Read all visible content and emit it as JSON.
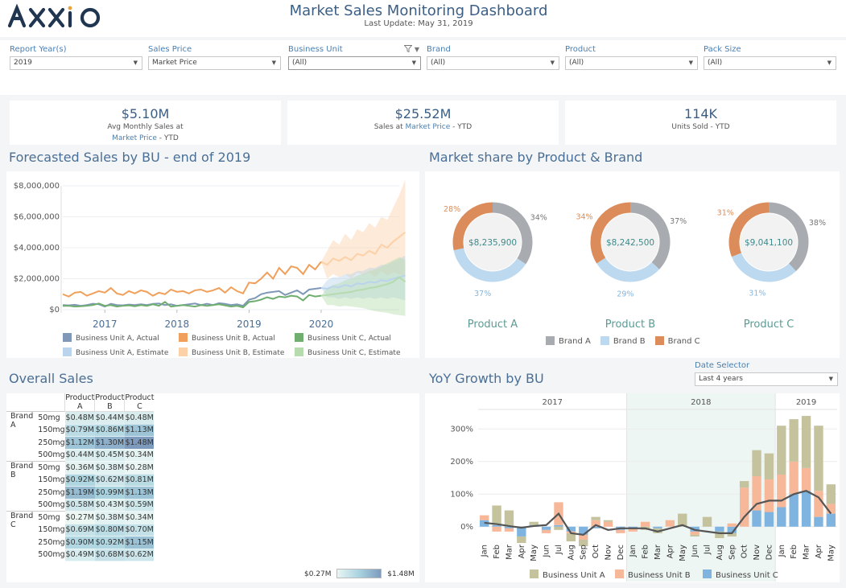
{
  "header": {
    "logo_text": "AXXIO",
    "title": "Market Sales Monitoring Dashboard",
    "last_update_label": "Last Update:",
    "last_update_value": "May 31, 2019"
  },
  "filters": [
    {
      "label": "Report Year(s)",
      "value": "2019",
      "has_filter_icon": false
    },
    {
      "label": "Sales Price",
      "value": "Market Price",
      "has_filter_icon": false
    },
    {
      "label": "Business Unit",
      "value": "(All)",
      "has_filter_icon": true
    },
    {
      "label": "Brand",
      "value": "(All)",
      "has_filter_icon": false
    },
    {
      "label": "Product",
      "value": "(All)",
      "has_filter_icon": false
    },
    {
      "label": "Pack Size",
      "value": "(All)",
      "has_filter_icon": false
    }
  ],
  "kpis": [
    {
      "value": "$5.10M",
      "line1": "Avg Monthly Sales at",
      "line2_hl": "Market Price",
      "line2_rest": " - YTD"
    },
    {
      "value": "$25.52M",
      "line1_pre": "Sales at ",
      "line1_hl": "Market Price",
      "line1_rest": " - YTD"
    },
    {
      "value": "114K",
      "line1": "Units Sold  - YTD"
    }
  ],
  "forecast": {
    "title": "Forecasted Sales by BU - end of 2019",
    "legend": [
      {
        "label": "Business Unit A, Actual",
        "color": "#7f98b8"
      },
      {
        "label": "Business Unit B, Actual",
        "color": "#f0a05a"
      },
      {
        "label": "Business Unit C, Actual",
        "color": "#6fae6f"
      },
      {
        "label": "Business Unit A, Estimate",
        "color": "#b9d4ec"
      },
      {
        "label": "Business Unit B, Estimate",
        "color": "#fcd1a8"
      },
      {
        "label": "Business Unit C, Estimate",
        "color": "#b5dbae"
      }
    ]
  },
  "market_share": {
    "title": "Market share by Product & Brand",
    "legend": [
      {
        "label": "Brand A",
        "color": "#a8abaf"
      },
      {
        "label": "Brand B",
        "color": "#bcd9f0"
      },
      {
        "label": "Brand C",
        "color": "#db8c5a"
      }
    ]
  },
  "overall_sales": {
    "title": "Overall Sales",
    "columns": [
      "Product A",
      "Product B",
      "Product C"
    ],
    "groups": [
      {
        "brand": "Brand A",
        "rows": [
          {
            "size": "50mg",
            "values": [
              "$0.48M",
              "$0.44M",
              "$0.48M"
            ],
            "num": [
              0.48,
              0.44,
              0.48
            ]
          },
          {
            "size": "150mg",
            "values": [
              "$0.79M",
              "$0.86M",
              "$1.13M"
            ],
            "num": [
              0.79,
              0.86,
              1.13
            ]
          },
          {
            "size": "250mg",
            "values": [
              "$1.12M",
              "$1.30M",
              "$1.48M"
            ],
            "num": [
              1.12,
              1.3,
              1.48
            ]
          },
          {
            "size": "500mg",
            "values": [
              "$0.44M",
              "$0.45M",
              "$0.34M"
            ],
            "num": [
              0.44,
              0.45,
              0.34
            ]
          }
        ]
      },
      {
        "brand": "Brand B",
        "rows": [
          {
            "size": "50mg",
            "values": [
              "$0.36M",
              "$0.38M",
              "$0.28M"
            ],
            "num": [
              0.36,
              0.38,
              0.28
            ]
          },
          {
            "size": "150mg",
            "values": [
              "$0.92M",
              "$0.62M",
              "$0.81M"
            ],
            "num": [
              0.92,
              0.62,
              0.81
            ]
          },
          {
            "size": "250mg",
            "values": [
              "$1.19M",
              "$0.99M",
              "$1.13M"
            ],
            "num": [
              1.19,
              0.99,
              1.13
            ]
          },
          {
            "size": "500mg",
            "values": [
              "$0.58M",
              "$0.43M",
              "$0.59M"
            ],
            "num": [
              0.58,
              0.43,
              0.59
            ]
          }
        ]
      },
      {
        "brand": "Brand C",
        "rows": [
          {
            "size": "50mg",
            "values": [
              "$0.27M",
              "$0.38M",
              "$0.34M"
            ],
            "num": [
              0.27,
              0.38,
              0.34
            ]
          },
          {
            "size": "150mg",
            "values": [
              "$0.69M",
              "$0.80M",
              "$0.70M"
            ],
            "num": [
              0.69,
              0.8,
              0.7
            ]
          },
          {
            "size": "250mg",
            "values": [
              "$0.90M",
              "$0.92M",
              "$1.15M"
            ],
            "num": [
              0.9,
              0.92,
              1.15
            ]
          },
          {
            "size": "500mg",
            "values": [
              "$0.49M",
              "$0.68M",
              "$0.62M"
            ],
            "num": [
              0.49,
              0.68,
              0.62
            ]
          }
        ]
      }
    ],
    "scale_min": "$0.27M",
    "scale_max": "$1.48M"
  },
  "yoy": {
    "title": "YoY Growth by BU",
    "date_selector_label": "Date Selector",
    "date_selector_value": "Last 4 years"
  },
  "chart_data": [
    {
      "type": "line",
      "title": "Forecasted Sales by BU - end of 2019",
      "x_ticks": [
        "2017",
        "2018",
        "2019",
        "2020"
      ],
      "y_ticks": [
        "$8,000,000",
        "$6,000,000",
        "$4,000,000",
        "$2,000,000",
        "$0"
      ],
      "ylim": [
        0,
        8000000
      ],
      "x_start": "2016-06",
      "series": [
        {
          "name": "Business Unit B, Actual",
          "color": "#f0a05a",
          "values": [
            1000000,
            850000,
            1100000,
            1150000,
            900000,
            1050000,
            1200000,
            1100000,
            1400000,
            1050000,
            950000,
            1200000,
            1050000,
            1250000,
            1150000,
            900000,
            1100000,
            1000000,
            1300000,
            1150000,
            1200000,
            1050000,
            1250000,
            1300000,
            1150000,
            1250000,
            1400000,
            1100000,
            1450000,
            1200000,
            1050000,
            1750000,
            1700000,
            2000000,
            2400000,
            2000000,
            2700000,
            2300000,
            2800000,
            2700000,
            2300000,
            2900000,
            2600000,
            3100000
          ]
        },
        {
          "name": "Business Unit A, Actual",
          "color": "#7f98b8",
          "values": [
            300000,
            280000,
            320000,
            250000,
            300000,
            380000,
            350000,
            200000,
            380000,
            300000,
            280000,
            330000,
            300000,
            350000,
            300000,
            380000,
            400000,
            300000,
            350000,
            250000,
            300000,
            350000,
            400000,
            300000,
            380000,
            300000,
            420000,
            380000,
            300000,
            350000,
            250000,
            650000,
            750000,
            1000000,
            1100000,
            1150000,
            1200000,
            950000,
            1100000,
            1250000,
            1000000,
            1300000,
            1350000,
            1400000
          ]
        },
        {
          "name": "Business Unit C, Actual",
          "color": "#6fae6f",
          "values": [
            250000,
            250000,
            200000,
            220000,
            250000,
            300000,
            400000,
            250000,
            300000,
            200000,
            250000,
            280000,
            220000,
            300000,
            250000,
            350000,
            250000,
            500000,
            200000,
            250000,
            300000,
            250000,
            200000,
            300000,
            250000,
            300000,
            350000,
            280000,
            200000,
            250000,
            150000,
            500000,
            550000,
            650000,
            800000,
            700000,
            850000,
            800000,
            900000,
            850000,
            600000,
            950000,
            850000,
            900000
          ]
        },
        {
          "name": "Business Unit B, Estimate",
          "color": "#fcd1a8",
          "start_index": 43,
          "values": [
            3100000,
            2900000,
            3300000,
            3150000,
            3400000,
            3200000,
            3600000,
            3500000,
            3800000,
            3600000,
            4200000,
            4000000,
            4400000,
            4700000,
            5000000
          ],
          "upper": [
            3100000,
            3800000,
            4500000,
            4200000,
            4900000,
            4500000,
            5200000,
            5000000,
            5600000,
            5300000,
            6000000,
            5800000,
            6600000,
            7400000,
            8400000
          ],
          "lower": [
            3100000,
            2000000,
            2300000,
            2100000,
            2300000,
            2000000,
            2400000,
            2200000,
            2400000,
            2100000,
            2500000,
            2200000,
            2400000,
            2300000,
            2100000
          ]
        },
        {
          "name": "Business Unit A, Estimate",
          "color": "#b9d4ec",
          "start_index": 43,
          "values": [
            1400000,
            1350000,
            1500000,
            1450000,
            1600000,
            1500000,
            1700000,
            1650000,
            1800000,
            1750000,
            1900000,
            1850000,
            2000000,
            2100000,
            2200000
          ],
          "upper": [
            1400000,
            1900000,
            2100000,
            2100000,
            2300000,
            2300000,
            2500000,
            2500000,
            2700000,
            2700000,
            2900000,
            2900000,
            3100000,
            3300000,
            3500000
          ],
          "lower": [
            1400000,
            800000,
            800000,
            700000,
            800000,
            700000,
            800000,
            700000,
            800000,
            700000,
            800000,
            700000,
            800000,
            700000,
            600000
          ]
        },
        {
          "name": "Business Unit C, Estimate",
          "color": "#b5dbae",
          "start_index": 43,
          "values": [
            900000,
            950000,
            1000000,
            1050000,
            1100000,
            1150000,
            1250000,
            1300000,
            1400000,
            1450000,
            1550000,
            1650000,
            1800000,
            2100000,
            1800000
          ],
          "upper": [
            900000,
            1400000,
            1600000,
            1700000,
            1900000,
            2000000,
            2200000,
            2300000,
            2500000,
            2600000,
            2800000,
            3000000,
            3200000,
            3400000,
            3200000
          ],
          "lower": [
            900000,
            300000,
            300000,
            200000,
            250000,
            200000,
            150000,
            100000,
            0,
            -100000,
            -150000,
            -200000,
            -300000,
            -350000,
            -400000
          ]
        }
      ]
    },
    {
      "type": "pie",
      "title": "Market share by Product & Brand",
      "donuts": [
        {
          "product": "Product A",
          "center_label": "$8,235,900",
          "shares": {
            "Brand A": 34,
            "Brand B": 37,
            "Brand C": 28
          },
          "labels": {
            "Brand A": "34%",
            "Brand B": "37%",
            "Brand C": "28%"
          }
        },
        {
          "product": "Product B",
          "center_label": "$8,242,500",
          "shares": {
            "Brand A": 37,
            "Brand B": 29,
            "Brand C": 34
          },
          "labels": {
            "Brand A": "37%",
            "Brand B": "29%",
            "Brand C": "34%"
          }
        },
        {
          "product": "Product C",
          "center_label": "$9,041,100",
          "shares": {
            "Brand A": 38,
            "Brand B": 31,
            "Brand C": 31
          },
          "labels": {
            "Brand A": "38%",
            "Brand B": "31%",
            "Brand C": "31%"
          }
        }
      ],
      "colors": {
        "Brand A": "#a8abaf",
        "Brand B": "#bcd9f0",
        "Brand C": "#db8c5a"
      }
    },
    {
      "type": "bar",
      "title": "YoY Growth by BU",
      "years": [
        {
          "label": "2017",
          "months": 12
        },
        {
          "label": "2018",
          "months": 12
        },
        {
          "label": "2019",
          "months": 5
        }
      ],
      "categories": [
        "Jan",
        "Feb",
        "Mar",
        "Apr",
        "May",
        "Jun",
        "Jul",
        "Aug",
        "Sep",
        "Oct",
        "Nov",
        "Dec",
        "Jan",
        "Feb",
        "Mar",
        "Apr",
        "May",
        "Jun",
        "Jul",
        "Aug",
        "Sep",
        "Oct",
        "Nov",
        "Dec",
        "Jan",
        "Feb",
        "Mar",
        "Apr",
        "May"
      ],
      "y_ticks": [
        "300%",
        "200%",
        "100%",
        "0%"
      ],
      "ylim": [
        -45,
        355
      ],
      "series": [
        {
          "name": "Business Unit A",
          "color": "#c4c39e",
          "values": [
            0,
            60,
            50,
            -20,
            10,
            0,
            -10,
            -25,
            -20,
            10,
            5,
            0,
            0,
            -10,
            -15,
            0,
            40,
            -5,
            30,
            -20,
            -10,
            20,
            80,
            80,
            150,
            130,
            160,
            200,
            60
          ]
        },
        {
          "name": "Business Unit B",
          "color": "#f7b89a",
          "values": [
            15,
            -15,
            -10,
            0,
            0,
            -10,
            70,
            -5,
            -15,
            20,
            15,
            -10,
            -10,
            15,
            0,
            20,
            0,
            -10,
            0,
            0,
            10,
            120,
            105,
            100,
            100,
            100,
            70,
            80,
            30
          ]
        },
        {
          "name": "Business Unit C",
          "color": "#7fb3e0",
          "values": [
            20,
            5,
            -5,
            -30,
            5,
            -10,
            5,
            -15,
            -25,
            -5,
            0,
            -10,
            -5,
            0,
            -5,
            0,
            0,
            -15,
            0,
            -15,
            -20,
            0,
            50,
            45,
            60,
            100,
            110,
            30,
            40
          ]
        }
      ],
      "line": {
        "name": "Total",
        "color": "#555555",
        "values": [
          12,
          8,
          2,
          -3,
          2,
          5,
          40,
          -20,
          -25,
          5,
          -10,
          -5,
          -5,
          -5,
          -15,
          -5,
          5,
          -10,
          -15,
          -20,
          -20,
          30,
          70,
          80,
          80,
          100,
          110,
          90,
          40
        ]
      },
      "highlight_ranges": [
        [
          12,
          23
        ]
      ]
    }
  ]
}
